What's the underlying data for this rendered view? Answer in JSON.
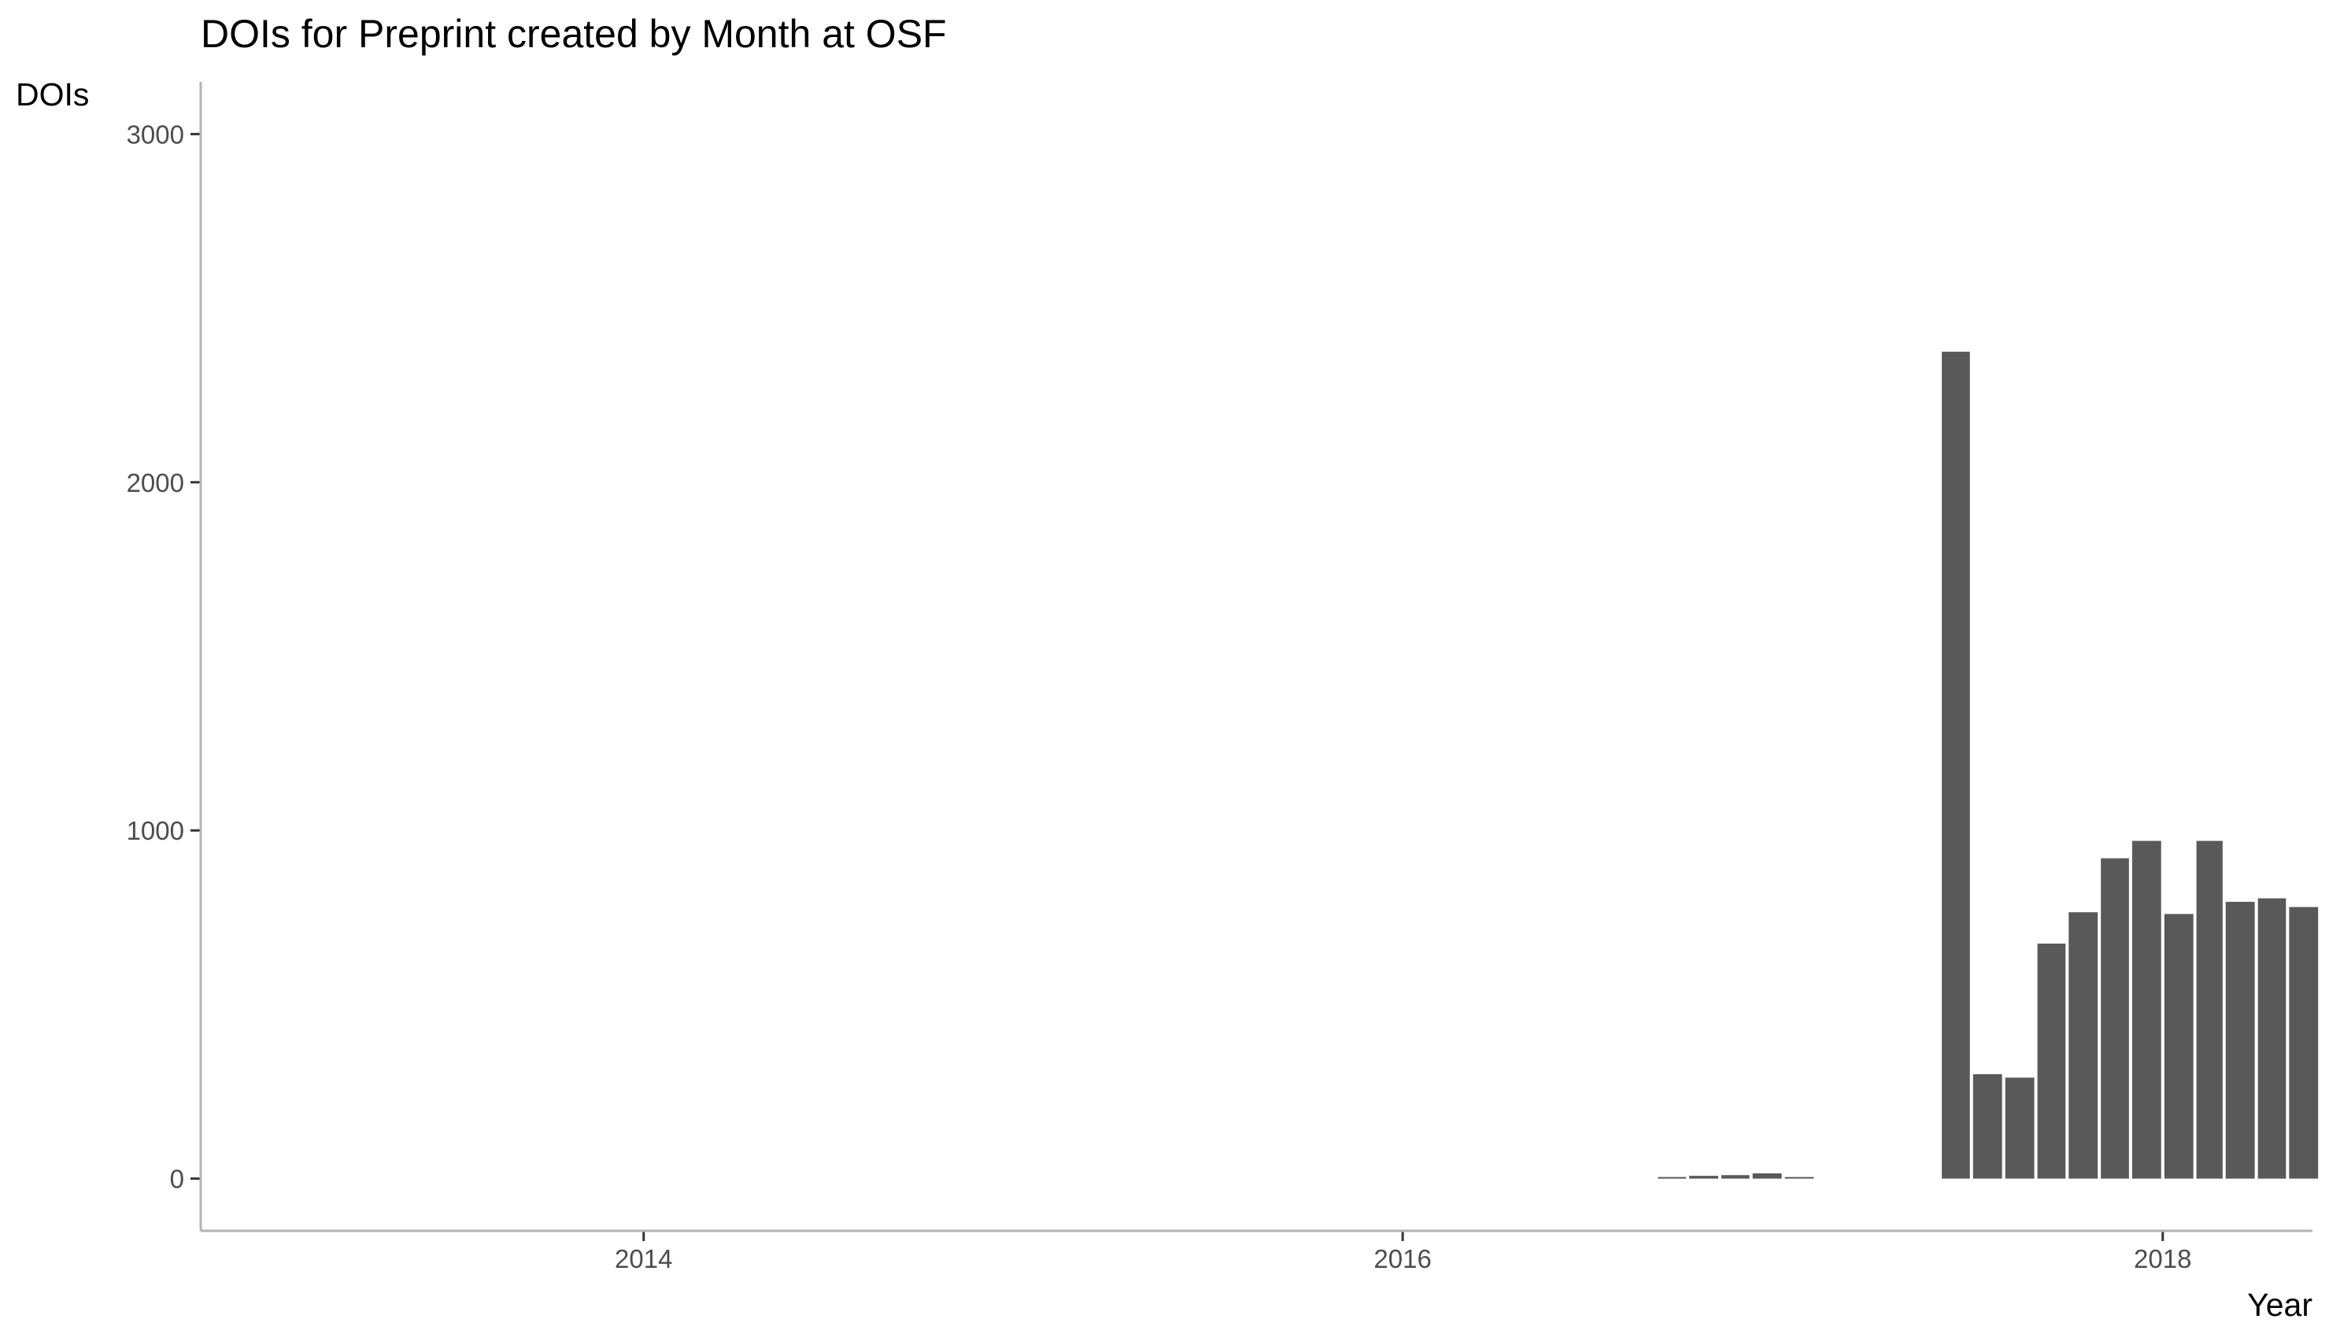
{
  "chart_data": {
    "type": "bar",
    "title": "DOIs for Preprint created by Month at OSF",
    "xlabel": "Year",
    "ylabel": "DOIs",
    "x_axis_type": "date",
    "xlim": [
      "2012-11-01",
      "2018-05-25"
    ],
    "ylim": [
      -150,
      3150
    ],
    "x_ticks": [
      "2014",
      "2016",
      "2018"
    ],
    "x_tick_dates": [
      "2014-01-01",
      "2016-01-01",
      "2018-01-01"
    ],
    "y_ticks": [
      0,
      1000,
      2000,
      3000
    ],
    "x": [
      "2016-09",
      "2016-10",
      "2016-11",
      "2016-12",
      "2017-01",
      "2017-06",
      "2017-07",
      "2017-08",
      "2017-09",
      "2017-10",
      "2017-11",
      "2017-12",
      "2018-01",
      "2018-02",
      "2018-03",
      "2018-04",
      "2018-05"
    ],
    "values": [
      3,
      8,
      10,
      15,
      2,
      2375,
      300,
      290,
      675,
      765,
      920,
      970,
      760,
      970,
      795,
      805,
      780
    ],
    "bar_color": "#595959",
    "grid": false,
    "legend": "none"
  }
}
